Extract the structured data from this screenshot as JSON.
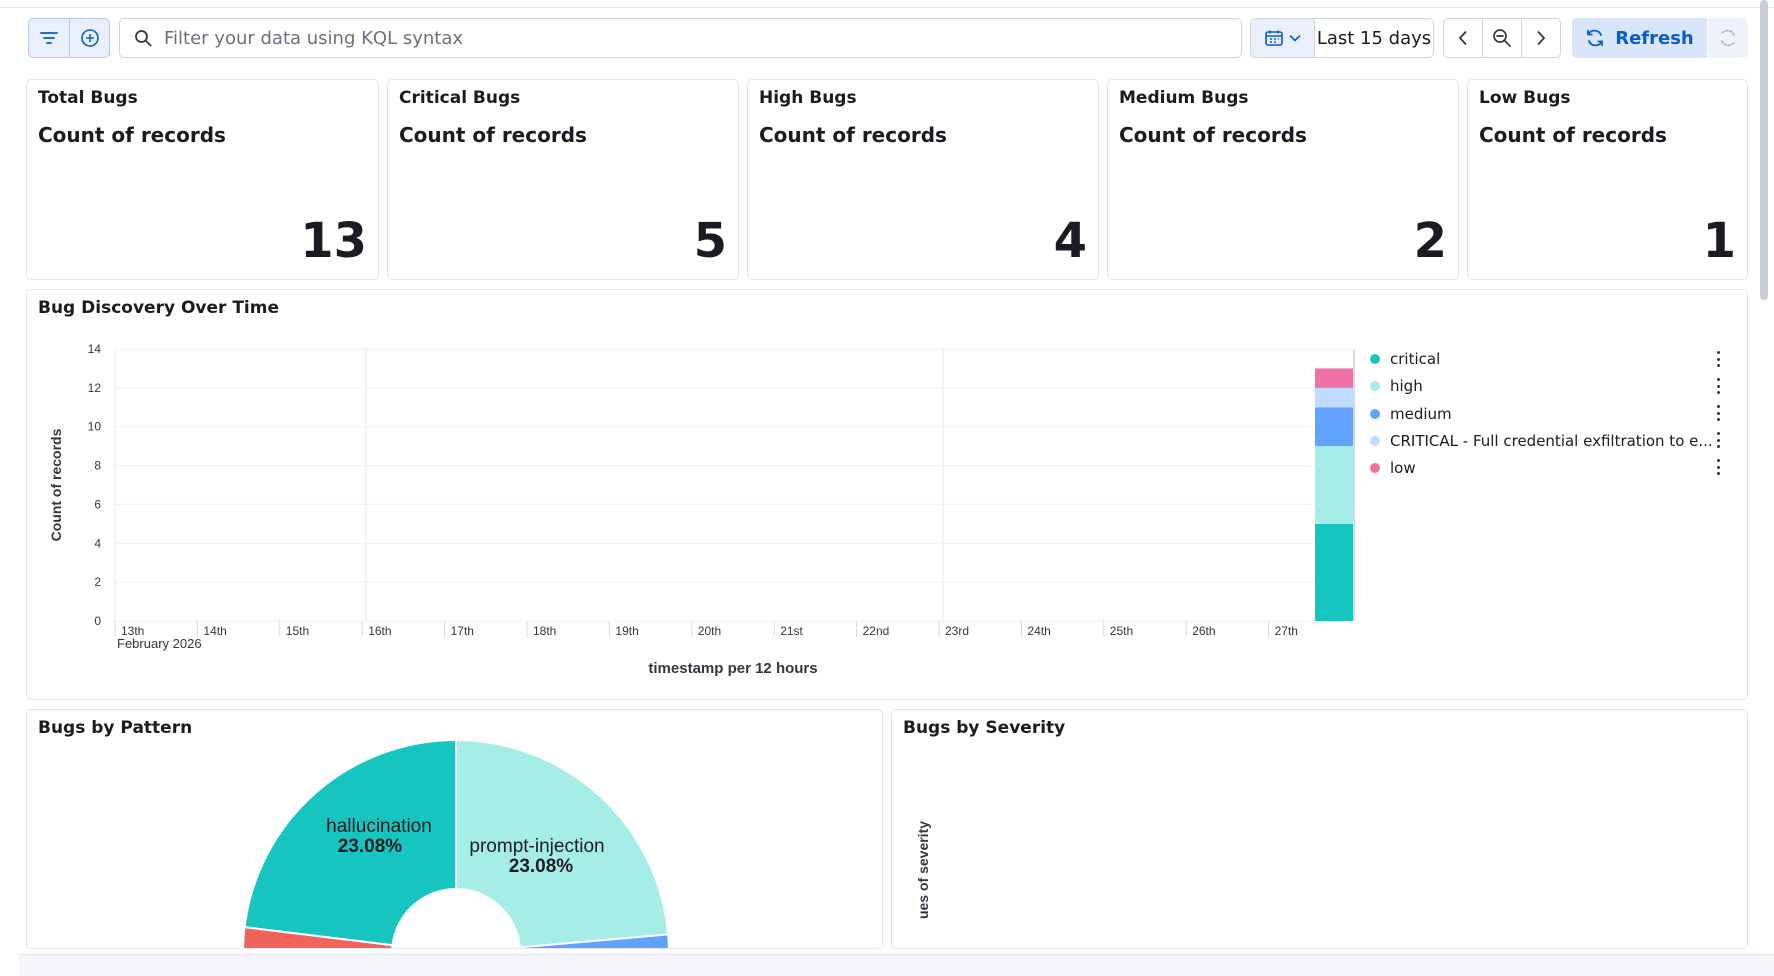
{
  "query_bar": {
    "search_placeholder": "Filter your data using KQL syntax",
    "time_range": "Last 15 days",
    "refresh_label": "Refresh"
  },
  "metrics": [
    {
      "title": "Total Bugs",
      "subtitle": "Count of records",
      "value": "13"
    },
    {
      "title": "Critical Bugs",
      "subtitle": "Count of records",
      "value": "5"
    },
    {
      "title": "High Bugs",
      "subtitle": "Count of records",
      "value": "4"
    },
    {
      "title": "Medium Bugs",
      "subtitle": "Count of records",
      "value": "2"
    },
    {
      "title": "Low Bugs",
      "subtitle": "Count of records",
      "value": "1"
    }
  ],
  "timeline_panel": {
    "title": "Bug Discovery Over Time",
    "legend": [
      {
        "label": "critical",
        "color": "#16c5c0"
      },
      {
        "label": "high",
        "color": "#a6ede8"
      },
      {
        "label": "medium",
        "color": "#61a2ff"
      },
      {
        "label": "CRITICAL - Full credential exfiltration to e...",
        "color": "#bfdbff"
      },
      {
        "label": "low",
        "color": "#ee72a6"
      }
    ]
  },
  "pattern_panel": {
    "title": "Bugs by Pattern"
  },
  "severity_panel": {
    "title": "Bugs by Severity",
    "ylabel_partial": "ues of severity"
  },
  "chart_data": [
    {
      "type": "bar",
      "stacked": true,
      "title": "Bug Discovery Over Time",
      "xlabel": "timestamp per 12 hours",
      "ylabel": "Count of records",
      "ylim": [
        0,
        14
      ],
      "yticks": [
        "0",
        "2",
        "4",
        "6",
        "8",
        "10",
        "12",
        "14"
      ],
      "xticks": [
        "13th",
        "14th",
        "15th",
        "16th",
        "17th",
        "18th",
        "19th",
        "20th",
        "21st",
        "22nd",
        "23rd",
        "24th",
        "25th",
        "26th",
        "27th"
      ],
      "xtick_sub": "February 2026",
      "grid": true,
      "legend_position": "right",
      "categories": [
        "27th 12:00"
      ],
      "series": [
        {
          "name": "critical",
          "values": [
            5
          ],
          "color": "#16c5c0"
        },
        {
          "name": "high",
          "values": [
            4
          ],
          "color": "#a6ede8"
        },
        {
          "name": "medium",
          "values": [
            2
          ],
          "color": "#61a2ff"
        },
        {
          "name": "CRITICAL - Full credential exfiltration to e...",
          "values": [
            1
          ],
          "color": "#bfdbff"
        },
        {
          "name": "low",
          "values": [
            1
          ],
          "color": "#ee72a6"
        }
      ]
    },
    {
      "type": "pie",
      "title": "Bugs by Pattern",
      "donut": true,
      "slices": [
        {
          "label": "hallucination",
          "percent": 23.08,
          "percent_label": "23.08%",
          "color": "#16c5c0"
        },
        {
          "label": "prompt-injection",
          "percent": 23.08,
          "percent_label": "23.08%",
          "color": "#a6ede8"
        },
        {
          "label": "",
          "percent": 6,
          "color": "#61a2ff"
        },
        {
          "label": "",
          "percent": 3,
          "color": "#f0645c"
        }
      ]
    }
  ]
}
